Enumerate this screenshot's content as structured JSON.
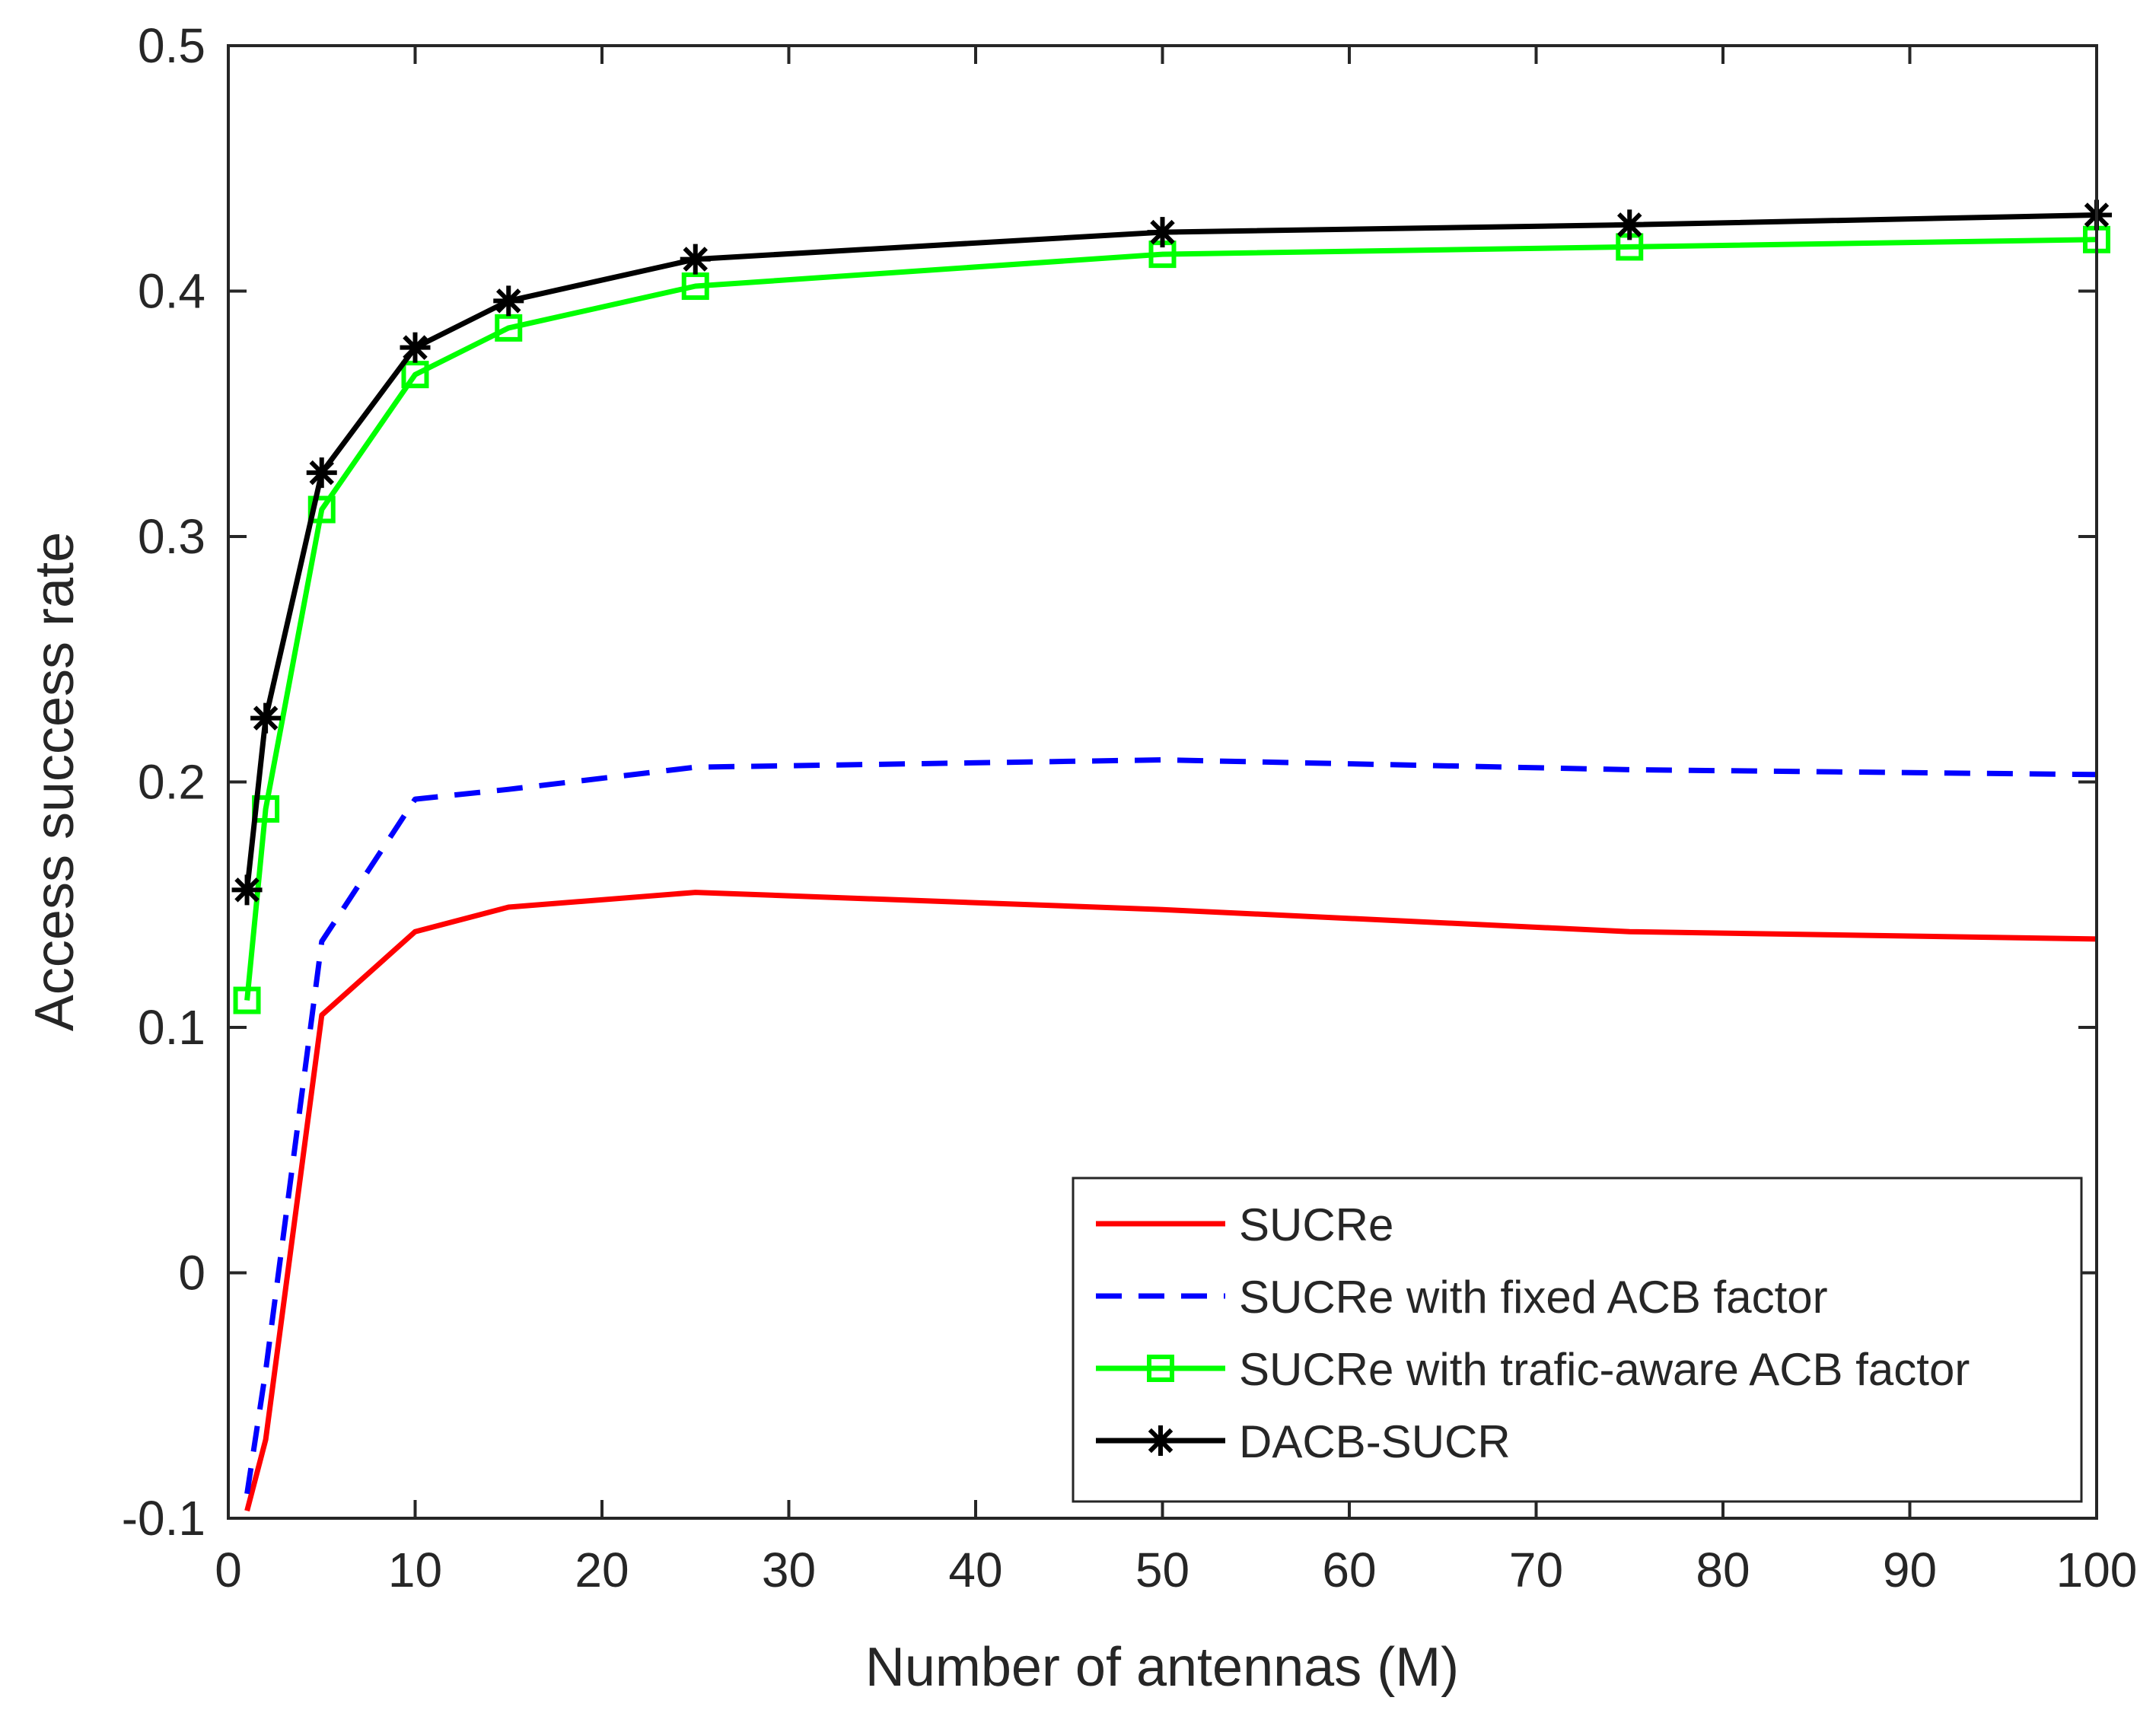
{
  "chart_data": {
    "type": "line",
    "title": "",
    "xlabel": "Number of antennas (M)",
    "ylabel": "Access success rate",
    "xlim": [
      0,
      100
    ],
    "ylim": [
      -0.1,
      0.5
    ],
    "xticks": [
      0,
      10,
      20,
      30,
      40,
      50,
      60,
      70,
      80,
      90,
      100
    ],
    "yticks": [
      -0.1,
      0,
      0.1,
      0.2,
      0.3,
      0.4,
      0.5
    ],
    "xtick_labels": [
      "0",
      "10",
      "20",
      "30",
      "40",
      "50",
      "60",
      "70",
      "80",
      "90",
      "100"
    ],
    "ytick_labels": [
      "-0.1",
      "0",
      "0.1",
      "0.2",
      "0.3",
      "0.4",
      "0.5"
    ],
    "grid": false,
    "legend_position": "bottom-right",
    "x": [
      1,
      2,
      5,
      10,
      15,
      25,
      50,
      75,
      100
    ],
    "series": [
      {
        "name": "SUCRe",
        "color": "#ff0000",
        "dash": "solid",
        "marker": "none",
        "values": [
          -0.097,
          -0.068,
          0.105,
          0.139,
          0.149,
          0.155,
          0.148,
          0.139,
          0.136
        ]
      },
      {
        "name": "SUCRe with fixed ACB factor",
        "color": "#0000ff",
        "dash": "dashed",
        "marker": "none",
        "values": [
          -0.09,
          -0.04,
          0.135,
          0.193,
          0.197,
          0.206,
          0.209,
          0.205,
          0.203
        ]
      },
      {
        "name": "SUCRe with trafic-aware ACB factor",
        "color": "#00ff00",
        "dash": "solid",
        "marker": "square",
        "values": [
          0.111,
          0.189,
          0.311,
          0.366,
          0.385,
          0.402,
          0.415,
          0.418,
          0.421
        ]
      },
      {
        "name": "DACB-SUCR",
        "color": "#000000",
        "dash": "solid",
        "marker": "asterisk",
        "values": [
          0.156,
          0.226,
          0.326,
          0.377,
          0.396,
          0.413,
          0.424,
          0.427,
          0.431
        ]
      }
    ]
  }
}
